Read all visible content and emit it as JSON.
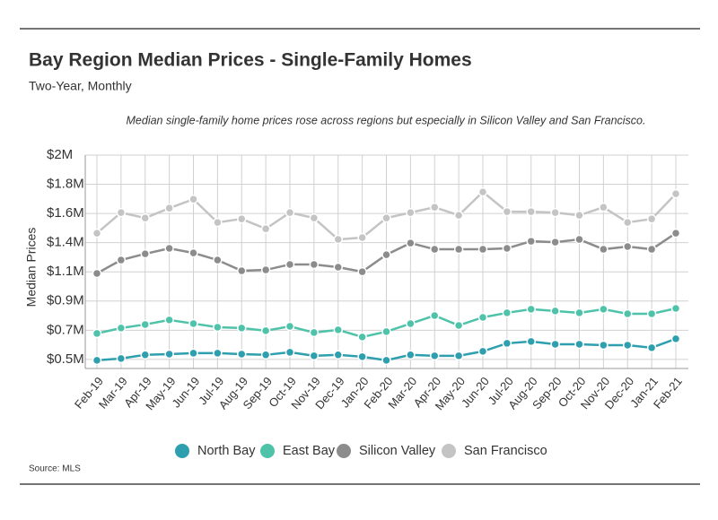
{
  "chart_data": {
    "type": "line",
    "title": "Bay Region Median Prices - Single-Family Homes",
    "subtitle": "Two-Year, Monthly",
    "annotation": "Median single-family home prices rose across regions but especially in Silicon Valley and San Francisco.",
    "y_label": "Median Prices",
    "source": "Source:  MLS",
    "categories": [
      "Feb-19",
      "Mar-19",
      "Apr-19",
      "May-19",
      "Jun-19",
      "Jul-19",
      "Aug-19",
      "Sep-19",
      "Oct-19",
      "Nov-19",
      "Dec-19",
      "Jan-20",
      "Feb-20",
      "Mar-20",
      "Apr-20",
      "May-20",
      "Jun-20",
      "Jul-20",
      "Aug-20",
      "Sep-20",
      "Oct-20",
      "Nov-20",
      "Dec-20",
      "Jan-21",
      "Feb-21"
    ],
    "series": [
      {
        "name": "North Bay",
        "color": "#2e9fae",
        "values": [
          443000,
          457000,
          485000,
          491000,
          498000,
          498000,
          491000,
          485000,
          505000,
          478000,
          485000,
          471000,
          443000,
          485000,
          478000,
          478000,
          512000,
          574000,
          588000,
          567000,
          567000,
          560000,
          560000,
          540000,
          609000
        ]
      },
      {
        "name": "East Bay",
        "color": "#4ec3a9",
        "values": [
          650000,
          692000,
          719000,
          754000,
          726000,
          698000,
          692000,
          671000,
          705000,
          657000,
          678000,
          623000,
          664000,
          726000,
          788000,
          712000,
          774000,
          809000,
          837000,
          823000,
          809000,
          837000,
          802000,
          802000,
          843000
        ]
      },
      {
        "name": "Silicon Valley",
        "color": "#8c8c8c",
        "values": [
          1113000,
          1216000,
          1264000,
          1306000,
          1271000,
          1216000,
          1133000,
          1140000,
          1182000,
          1182000,
          1161000,
          1126000,
          1257000,
          1347000,
          1299000,
          1299000,
          1299000,
          1306000,
          1361000,
          1354000,
          1375000,
          1299000,
          1320000,
          1299000,
          1423000
        ]
      },
      {
        "name": "San Francisco",
        "color": "#c4c4c4",
        "values": [
          1423000,
          1582000,
          1540000,
          1616000,
          1685000,
          1506000,
          1533000,
          1457000,
          1582000,
          1540000,
          1375000,
          1389000,
          1540000,
          1582000,
          1623000,
          1561000,
          1741000,
          1589000,
          1589000,
          1582000,
          1561000,
          1623000,
          1506000,
          1533000,
          1727000
        ]
      }
    ],
    "ylim": [
      380000,
      2025000
    ],
    "yticks": [
      {
        "value": 450000,
        "label": "$0.5M"
      },
      {
        "value": 675000,
        "label": "$0.7M"
      },
      {
        "value": 900000,
        "label": "$0.9M"
      },
      {
        "value": 1125000,
        "label": "$1.1M"
      },
      {
        "value": 1350000,
        "label": "$1.4M"
      },
      {
        "value": 1575000,
        "label": "$1.6M"
      },
      {
        "value": 1800000,
        "label": "$1.8M"
      },
      {
        "value": 2025000,
        "label": "$2M"
      }
    ],
    "grid": true,
    "legend": "bottom"
  }
}
